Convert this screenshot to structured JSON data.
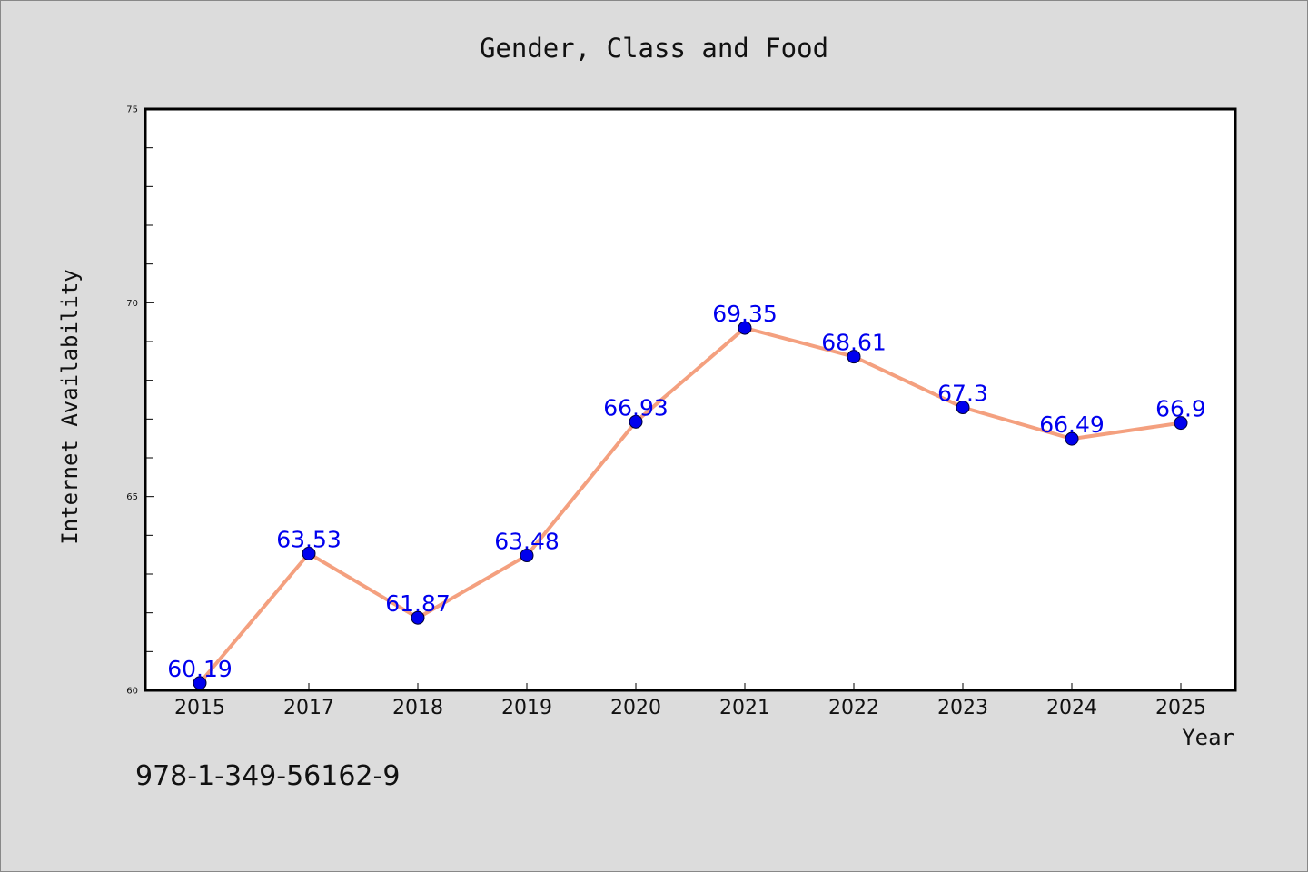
{
  "chart_data": {
    "type": "line",
    "title": "Gender, Class and Food",
    "xlabel": "Year",
    "ylabel": "Internet Availability",
    "categories": [
      "2015",
      "2017",
      "2018",
      "2019",
      "2020",
      "2021",
      "2022",
      "2023",
      "2024",
      "2025"
    ],
    "values": [
      60.19,
      63.53,
      61.87,
      63.48,
      66.93,
      69.35,
      68.61,
      67.3,
      66.49,
      66.9
    ],
    "data_labels": [
      "60.19",
      "63.53",
      "61.87",
      "63.48",
      "66.93",
      "69.35",
      "68.61",
      "67.3",
      "66.49",
      "66.9"
    ],
    "ylim": [
      60,
      75
    ],
    "yticks": [
      "60",
      "65",
      "70",
      "75"
    ],
    "grid": false,
    "legend": "none",
    "colors": {
      "line": "#f4a07f",
      "marker": "#0000ee",
      "label": "#0000ee",
      "background": "#dcdcdc",
      "plot_area": "#ffffff"
    }
  },
  "footer": {
    "isbn": "978-1-349-56162-9"
  }
}
